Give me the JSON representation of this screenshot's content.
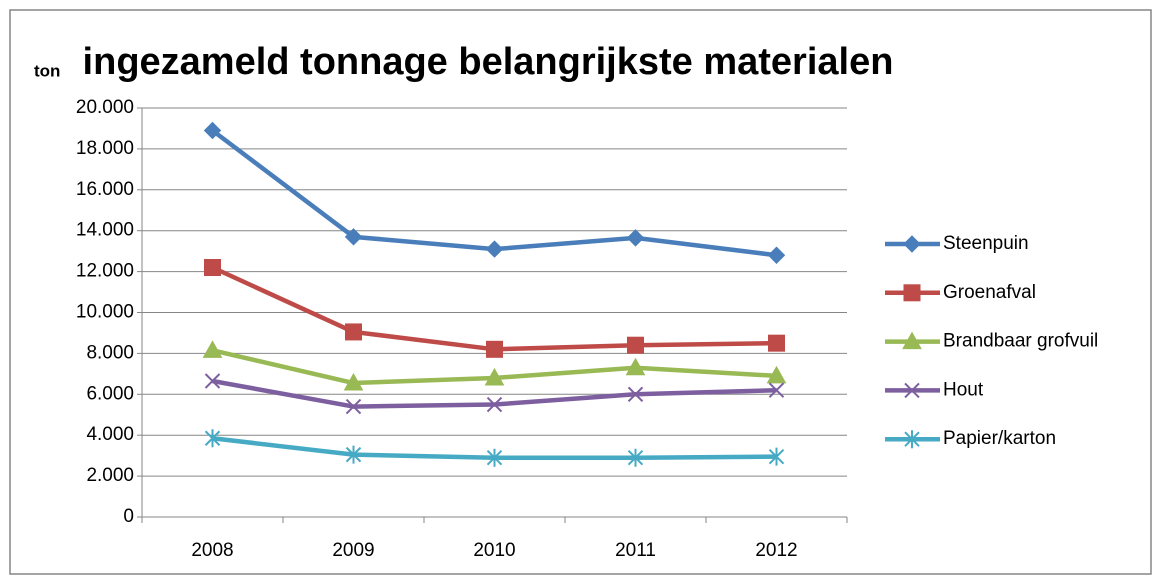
{
  "chart_data": {
    "type": "line",
    "title": "ingezameld tonnage belangrijkste materialen",
    "y_label": "ton",
    "categories": [
      "2008",
      "2009",
      "2010",
      "2011",
      "2012"
    ],
    "series": [
      {
        "name": "Steenpuin",
        "color": "#4a7ebb",
        "marker": "diamond",
        "values": [
          18900,
          13700,
          13100,
          13650,
          12800
        ]
      },
      {
        "name": "Groenafval",
        "color": "#be4b48",
        "marker": "square",
        "values": [
          12200,
          9050,
          8200,
          8400,
          8500
        ]
      },
      {
        "name": "Brandbaar grofvuil",
        "color": "#98b954",
        "marker": "triangle",
        "values": [
          8150,
          6550,
          6800,
          7300,
          6900
        ]
      },
      {
        "name": "Hout",
        "color": "#7d5fa0",
        "marker": "x",
        "values": [
          6650,
          5400,
          5500,
          6000,
          6200
        ]
      },
      {
        "name": "Papier/karton",
        "color": "#46aac5",
        "marker": "star",
        "values": [
          3850,
          3050,
          2900,
          2900,
          2950
        ]
      }
    ],
    "ylim": [
      0,
      20000
    ],
    "yticks": [
      0,
      {
        "value": 2000,
        "label": "2.000"
      },
      {
        "value": 4000,
        "label": "4.000"
      },
      {
        "value": 6000,
        "label": "6.000"
      },
      {
        "value": 8000,
        "label": "8.000"
      },
      {
        "value": 10000,
        "label": "10.000"
      },
      {
        "value": 12000,
        "label": "12.000"
      },
      {
        "value": 14000,
        "label": "14.000"
      },
      {
        "value": 16000,
        "label": "16.000"
      },
      {
        "value": 18000,
        "label": "18.000"
      },
      {
        "value": 20000,
        "label": "20.000"
      }
    ],
    "grid": true,
    "legend": "right"
  }
}
